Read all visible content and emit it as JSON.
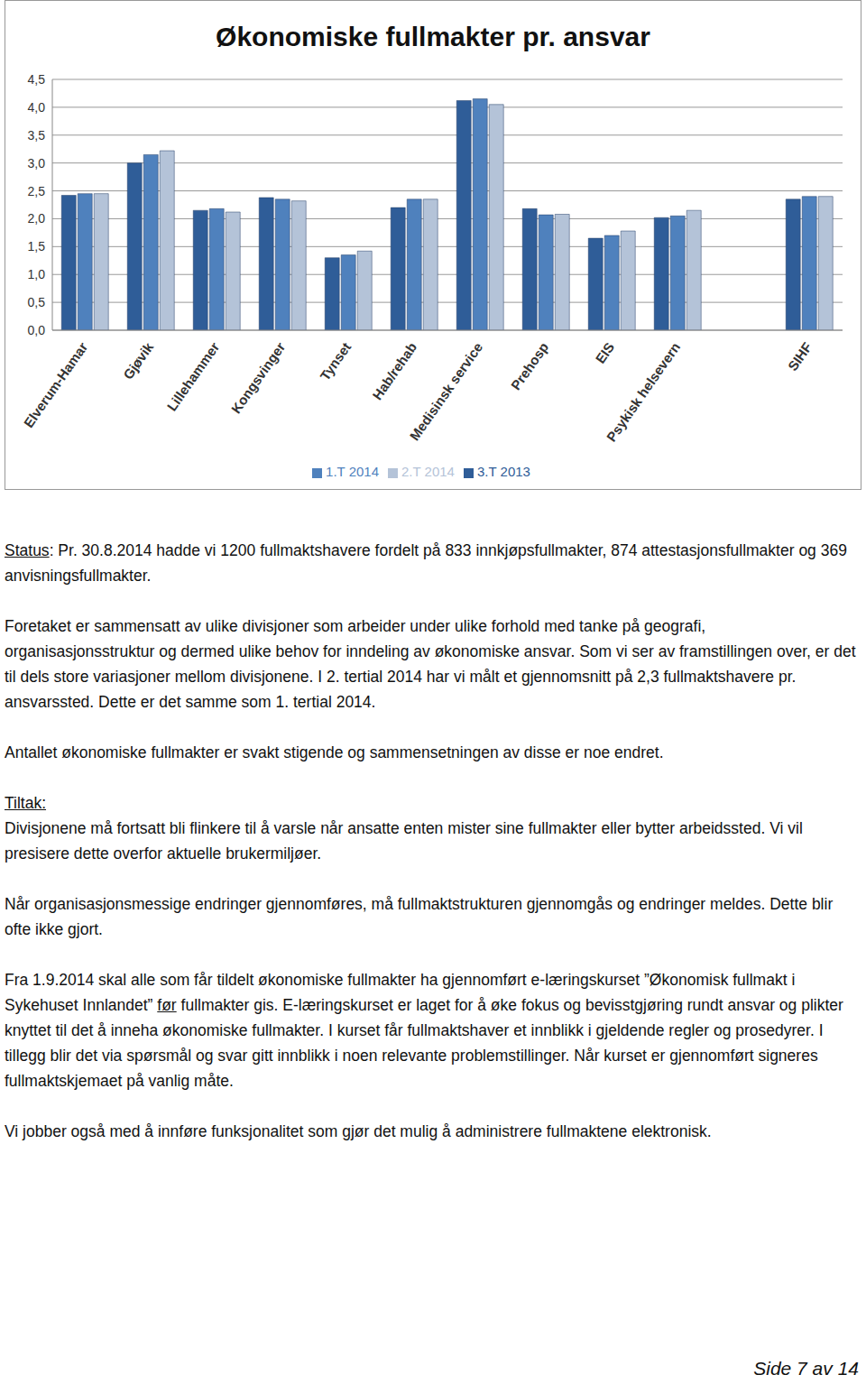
{
  "chart_data": {
    "type": "bar",
    "title": "Økonomiske fullmakter pr. ansvar",
    "categories": [
      "Elverum-Hamar",
      "Gjøvik",
      "Lillehammer",
      "Kongsvinger",
      "Tynset",
      "Hab/rehab",
      "Medisinsk service",
      "Prehosp",
      "EIS",
      "Psykisk helsevern",
      null,
      "SIHF"
    ],
    "series": [
      {
        "name": "3.T 2013",
        "color": "#2f5d98",
        "values": [
          2.42,
          3.0,
          2.15,
          2.38,
          1.3,
          2.2,
          4.12,
          2.18,
          1.65,
          2.02,
          null,
          2.35
        ]
      },
      {
        "name": "1.T 2014",
        "color": "#4f81bd",
        "values": [
          2.45,
          3.15,
          2.18,
          2.35,
          1.35,
          2.35,
          4.15,
          2.07,
          1.7,
          2.05,
          null,
          2.4
        ]
      },
      {
        "name": "2.T 2014",
        "color": "#b4c3d8",
        "values": [
          2.45,
          3.22,
          2.12,
          2.32,
          1.42,
          2.35,
          4.05,
          2.08,
          1.78,
          2.15,
          null,
          2.4
        ]
      }
    ],
    "ylim": [
      0,
      4.5
    ],
    "yticks": [
      {
        "value": 0,
        "label": "0,0"
      },
      {
        "value": 0.5,
        "label": "0,5"
      },
      {
        "value": 1,
        "label": "1,0"
      },
      {
        "value": 1.5,
        "label": "1,5"
      },
      {
        "value": 2,
        "label": "2,0"
      },
      {
        "value": 2.5,
        "label": "2,5"
      },
      {
        "value": 3,
        "label": "3,0"
      },
      {
        "value": 3.5,
        "label": "3,5"
      },
      {
        "value": 4,
        "label": "4,0"
      },
      {
        "value": 4.5,
        "label": "4,5"
      }
    ],
    "grid": true,
    "legend": "bottom"
  },
  "document": {
    "paragraphs": [
      [
        [
          {
            "text": "Status",
            "underline": true
          },
          {
            "text": ": Pr. 30.8.2014 hadde vi 1200 fullmaktshavere fordelt på 833 innkjøpsfullmakter, 874 attestasjonsfullmakter og 369 anvisningsfullmakter."
          }
        ]
      ],
      [
        [
          {
            "text": "Foretaket er sammensatt av ulike divisjoner som arbeider under ulike forhold med tanke på geografi, organisasjonsstruktur og dermed ulike behov for inndeling av økonomiske ansvar. Som vi ser av framstillingen over, er det til dels store variasjoner mellom divisjonene. I 2. tertial 2014 har vi målt et gjennomsnitt på 2,3 fullmaktshavere pr. ansvarssted. Dette er det samme som 1. tertial 2014."
          }
        ]
      ],
      [
        [
          {
            "text": "Antallet økonomiske fullmakter er svakt stigende og sammensetningen av disse er noe endret."
          }
        ]
      ],
      [
        [
          {
            "text": "Tiltak:",
            "underline": true
          }
        ],
        [
          {
            "text": "Divisjonene må fortsatt bli flinkere til å varsle når ansatte enten mister sine fullmakter eller bytter arbeidssted. Vi vil presisere dette overfor aktuelle brukermiljøer."
          }
        ]
      ],
      [
        [
          {
            "text": "Når organisasjonsmessige endringer gjennomføres, må fullmaktstrukturen gjennomgås og endringer meldes. Dette blir ofte ikke gjort."
          }
        ]
      ],
      [
        [
          {
            "text": "Fra 1.9.2014 skal alle som får tildelt økonomiske fullmakter ha gjennomført e-læringskurset ”Økonomisk fullmakt i Sykehuset Innlandet” "
          },
          {
            "text": "før",
            "underline": true
          },
          {
            "text": " fullmakter gis. E-læringskurset er laget for å øke fokus og bevisstgjøring rundt ansvar og plikter knyttet til det å inneha økonomiske fullmakter. I kurset får fullmaktshaver et innblikk i gjeldende regler og prosedyrer. I tillegg blir det via spørsmål og svar gitt innblikk i noen relevante problemstillinger. Når kurset er gjennomført signeres fullmaktskjemaet på vanlig måte."
          }
        ]
      ],
      [
        [
          {
            "text": "Vi jobber også med å innføre funksjonalitet som gjør det mulig å administrere fullmaktene elektronisk."
          }
        ]
      ]
    ],
    "footer": "Side 7 av 14"
  }
}
